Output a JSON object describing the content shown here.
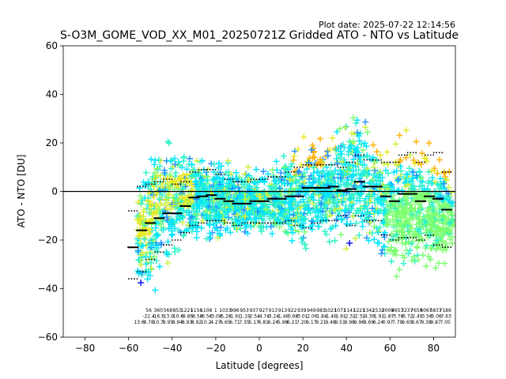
{
  "chart_data": {
    "type": "scatter",
    "title": "S-O3M_GOME_VOD_XX_M01_20250721Z Gridded ATO - NTO vs Latitude",
    "subtitle": "Plot date: 2025-07-22 12:14:56",
    "xlabel": "Latitude [degrees]",
    "ylabel": "ATO - NTO [DU]",
    "xlim": [
      -90,
      90
    ],
    "ylim": [
      -60,
      60
    ],
    "xticks": [
      -80,
      -60,
      -40,
      -20,
      0,
      20,
      40,
      60,
      80
    ],
    "xtick_labels": [
      "−80",
      "−60",
      "−40",
      "−20",
      "0",
      "20",
      "40",
      "60",
      "80"
    ],
    "yticks": [
      -60,
      -40,
      -20,
      0,
      20,
      40,
      60
    ],
    "ytick_labels": [
      "−60",
      "−40",
      "−20",
      "0",
      "20",
      "40",
      "60"
    ],
    "grid": false,
    "reference_line_y": 0,
    "marker": "+",
    "colors": {
      "blue": "#0000ee",
      "dodgerblue": "#1e90ff",
      "cyan": "#00e5ff",
      "aquamarine": "#2ef2c8",
      "springgreen": "#7cff6e",
      "yellowgreen": "#cdf23a",
      "yellow": "#e8e820",
      "orange": "#ffb000"
    },
    "envelope": [
      {
        "lat": -56,
        "upper": 8,
        "lower": -40
      },
      {
        "lat": -52,
        "upper": 14,
        "lower": -52
      },
      {
        "lat": -48,
        "upper": 30,
        "lower": -48
      },
      {
        "lat": -44,
        "upper": 32,
        "lower": -40
      },
      {
        "lat": -40,
        "upper": 28,
        "lower": -36
      },
      {
        "lat": -35,
        "upper": 22,
        "lower": -30
      },
      {
        "lat": -30,
        "upper": 18,
        "lower": -26
      },
      {
        "lat": -25,
        "upper": 18,
        "lower": -24
      },
      {
        "lat": -20,
        "upper": 17,
        "lower": -24
      },
      {
        "lat": -15,
        "upper": 14,
        "lower": -22
      },
      {
        "lat": -10,
        "upper": 14,
        "lower": -22
      },
      {
        "lat": -5,
        "upper": 13,
        "lower": -20
      },
      {
        "lat": 0,
        "upper": 13,
        "lower": -22
      },
      {
        "lat": 5,
        "upper": 15,
        "lower": -22
      },
      {
        "lat": 10,
        "upper": 17,
        "lower": -24
      },
      {
        "lat": 15,
        "upper": 19,
        "lower": -27
      },
      {
        "lat": 20,
        "upper": 26,
        "lower": -30
      },
      {
        "lat": 25,
        "upper": 27,
        "lower": -28
      },
      {
        "lat": 30,
        "upper": 26,
        "lower": -24
      },
      {
        "lat": 35,
        "upper": 32,
        "lower": -26
      },
      {
        "lat": 40,
        "upper": 34,
        "lower": -28
      },
      {
        "lat": 45,
        "upper": 40,
        "lower": -28
      },
      {
        "lat": 50,
        "upper": 30,
        "lower": -28
      },
      {
        "lat": 55,
        "upper": 27,
        "lower": -30
      },
      {
        "lat": 60,
        "upper": 22,
        "lower": -38
      },
      {
        "lat": 65,
        "upper": 28,
        "lower": -42
      },
      {
        "lat": 70,
        "upper": 26,
        "lower": -38
      },
      {
        "lat": 75,
        "upper": 26,
        "lower": -38
      },
      {
        "lat": 80,
        "upper": 24,
        "lower": -40
      },
      {
        "lat": 85,
        "upper": 18,
        "lower": -38
      },
      {
        "lat": 89,
        "upper": 8,
        "lower": -28
      }
    ],
    "mean_points": [
      {
        "lat": -58,
        "value": -23
      },
      {
        "lat": -54,
        "value": -16
      },
      {
        "lat": -50,
        "value": -13
      },
      {
        "lat": -46,
        "value": -11
      },
      {
        "lat": -42,
        "value": -9
      },
      {
        "lat": -38,
        "value": -9
      },
      {
        "lat": -34,
        "value": -6
      },
      {
        "lat": -30,
        "value": -2.5
      },
      {
        "lat": -26,
        "value": -2
      },
      {
        "lat": -22,
        "value": -1.5
      },
      {
        "lat": -18,
        "value": -3
      },
      {
        "lat": -14,
        "value": -4
      },
      {
        "lat": -10,
        "value": -5
      },
      {
        "lat": -6,
        "value": -5
      },
      {
        "lat": -2,
        "value": -4
      },
      {
        "lat": 2,
        "value": -4
      },
      {
        "lat": 6,
        "value": -3
      },
      {
        "lat": 10,
        "value": -3
      },
      {
        "lat": 14,
        "value": -2
      },
      {
        "lat": 18,
        "value": -2
      },
      {
        "lat": 22,
        "value": 1.5
      },
      {
        "lat": 26,
        "value": 1.5
      },
      {
        "lat": 30,
        "value": 1.5
      },
      {
        "lat": 34,
        "value": 2
      },
      {
        "lat": 38,
        "value": 0.5
      },
      {
        "lat": 42,
        "value": 1
      },
      {
        "lat": 46,
        "value": 4
      },
      {
        "lat": 50,
        "value": 2
      },
      {
        "lat": 54,
        "value": 2
      },
      {
        "lat": 58,
        "value": -2
      },
      {
        "lat": 62,
        "value": -4
      },
      {
        "lat": 66,
        "value": -1
      },
      {
        "lat": 70,
        "value": -1
      },
      {
        "lat": 74,
        "value": -4
      },
      {
        "lat": 78,
        "value": -2
      },
      {
        "lat": 82,
        "value": -3
      },
      {
        "lat": 86,
        "value": -7.5
      }
    ],
    "sd_points": [
      {
        "lat": -58,
        "value": -36
      },
      {
        "lat": -54,
        "value": -33
      },
      {
        "lat": -50,
        "value": -28
      },
      {
        "lat": -46,
        "value": -25
      },
      {
        "lat": -42,
        "value": -22
      },
      {
        "lat": -38,
        "value": -20
      },
      {
        "lat": -34,
        "value": -17
      },
      {
        "lat": -30,
        "value": -14
      },
      {
        "lat": -26,
        "value": -13
      },
      {
        "lat": -22,
        "value": -12
      },
      {
        "lat": -18,
        "value": -12
      },
      {
        "lat": -14,
        "value": -13
      },
      {
        "lat": -10,
        "value": -14
      },
      {
        "lat": -6,
        "value": -13
      },
      {
        "lat": -2,
        "value": -13
      },
      {
        "lat": 2,
        "value": -13
      },
      {
        "lat": 6,
        "value": -13
      },
      {
        "lat": 10,
        "value": -13
      },
      {
        "lat": 14,
        "value": -12
      },
      {
        "lat": 18,
        "value": -14
      },
      {
        "lat": 22,
        "value": -15
      },
      {
        "lat": 26,
        "value": -13
      },
      {
        "lat": 30,
        "value": -12
      },
      {
        "lat": 34,
        "value": -12
      },
      {
        "lat": 38,
        "value": -10
      },
      {
        "lat": 42,
        "value": -14
      },
      {
        "lat": 46,
        "value": -10
      },
      {
        "lat": 50,
        "value": -12
      },
      {
        "lat": 54,
        "value": -12
      },
      {
        "lat": 58,
        "value": -18
      },
      {
        "lat": 62,
        "value": -20
      },
      {
        "lat": 66,
        "value": -19
      },
      {
        "lat": 70,
        "value": -19
      },
      {
        "lat": 74,
        "value": -20
      },
      {
        "lat": 78,
        "value": -18
      },
      {
        "lat": 82,
        "value": -22
      },
      {
        "lat": 86,
        "value": -23
      },
      {
        "lat": -58,
        "value": -8
      },
      {
        "lat": -54,
        "value": 2
      },
      {
        "lat": -50,
        "value": 3
      },
      {
        "lat": -46,
        "value": 4
      },
      {
        "lat": -42,
        "value": 5
      },
      {
        "lat": -38,
        "value": 3
      },
      {
        "lat": -34,
        "value": 4
      },
      {
        "lat": -30,
        "value": 8
      },
      {
        "lat": -26,
        "value": 9
      },
      {
        "lat": -22,
        "value": 9
      },
      {
        "lat": -18,
        "value": 7
      },
      {
        "lat": -14,
        "value": 5
      },
      {
        "lat": -10,
        "value": 4
      },
      {
        "lat": -6,
        "value": 4
      },
      {
        "lat": -2,
        "value": 5
      },
      {
        "lat": 2,
        "value": 5
      },
      {
        "lat": 6,
        "value": 6
      },
      {
        "lat": 10,
        "value": 6
      },
      {
        "lat": 14,
        "value": 8
      },
      {
        "lat": 18,
        "value": 10
      },
      {
        "lat": 22,
        "value": 11
      },
      {
        "lat": 26,
        "value": 11
      },
      {
        "lat": 30,
        "value": 11
      },
      {
        "lat": 34,
        "value": 11
      },
      {
        "lat": 38,
        "value": 10
      },
      {
        "lat": 42,
        "value": 12
      },
      {
        "lat": 46,
        "value": 15
      },
      {
        "lat": 50,
        "value": 13
      },
      {
        "lat": 54,
        "value": 13
      },
      {
        "lat": 58,
        "value": 12
      },
      {
        "lat": 62,
        "value": 12
      },
      {
        "lat": 66,
        "value": 15
      },
      {
        "lat": 70,
        "value": 16
      },
      {
        "lat": 74,
        "value": 12
      },
      {
        "lat": 78,
        "value": 15
      },
      {
        "lat": 82,
        "value": 16
      },
      {
        "lat": 86,
        "value": 8
      }
    ],
    "stat_annotations": [
      {
        "lat": -58,
        "lines": [
          "",
          "",
          "13.6"
        ]
      },
      {
        "lat": -55,
        "lines": [
          "56",
          "-22.4",
          "8.78"
        ]
      },
      {
        "lat": -52,
        "lines": [
          "360",
          "-16.5",
          "10.7"
        ]
      },
      {
        "lat": -49,
        "lines": [
          "568",
          "-13.0",
          "8.95"
        ]
      },
      {
        "lat": -46,
        "lines": [
          "853",
          "-10.6",
          "8.94"
        ]
      },
      {
        "lat": -43,
        "lines": [
          "1221",
          "-9.85",
          "8.93"
        ]
      },
      {
        "lat": -40,
        "lines": [
          "1156",
          "-8.58",
          "8.92"
        ]
      },
      {
        "lat": -37,
        "lines": [
          "1108",
          "-6.56",
          "10.2"
        ]
      },
      {
        "lat": -34,
        "lines": [
          "1",
          "-3.08",
          "4.27"
        ]
      },
      {
        "lat": -31,
        "lines": [
          "1033",
          "-5.28",
          "6.65"
        ]
      },
      {
        "lat": -28,
        "lines": [
          "996",
          "-1.91",
          "6.71"
        ]
      },
      {
        "lat": -25,
        "lines": [
          "953",
          "-1.19",
          "7.35"
        ]
      },
      {
        "lat": -22,
        "lines": [
          "937",
          "-2.54",
          "5.17"
        ]
      },
      {
        "lat": -19,
        "lines": [
          "927",
          "-4.74",
          "6.81"
        ]
      },
      {
        "lat": -16,
        "lines": [
          "913",
          "-3.24",
          "6.24"
        ]
      },
      {
        "lat": -13,
        "lines": [
          "913",
          "-1.40",
          "5.98"
        ]
      },
      {
        "lat": -10,
        "lines": [
          "922",
          "-0.68",
          "6.21"
        ]
      },
      {
        "lat": -7,
        "lines": [
          "939",
          "-3.01",
          "7.20"
        ]
      },
      {
        "lat": -4,
        "lines": [
          "949",
          "-2.00",
          "6.17"
        ]
      },
      {
        "lat": -1,
        "lines": [
          "983",
          "-1.84",
          "9.21"
        ]
      },
      {
        "lat": 2,
        "lines": [
          "1023",
          "-1.40",
          "9.48"
        ]
      },
      {
        "lat": 5,
        "lines": [
          "1071",
          "-1.61",
          "9.51"
        ]
      },
      {
        "lat": 8,
        "lines": [
          "1143",
          "-2.32",
          "9.98"
        ]
      },
      {
        "lat": 11,
        "lines": [
          "1221",
          "-2.32",
          "9.96"
        ]
      },
      {
        "lat": 14,
        "lines": [
          "1342",
          "-4.30",
          "9.69"
        ]
      },
      {
        "lat": 17,
        "lines": [
          "1532",
          "-1.91",
          "6.24"
        ]
      },
      {
        "lat": 20,
        "lines": [
          "2009",
          "-1.87",
          "0.97"
        ]
      },
      {
        "lat": 23,
        "lines": [
          "4657",
          "-3.78",
          "7.79"
        ]
      },
      {
        "lat": 26,
        "lines": [
          "3237",
          "-5.72",
          "9.65"
        ]
      },
      {
        "lat": 29,
        "lines": [
          "7658",
          "-2.45",
          "8.67"
        ]
      },
      {
        "lat": 32,
        "lines": [
          "5067",
          "-3.56",
          "9.38"
        ]
      },
      {
        "lat": 35,
        "lines": [
          "5837",
          "-5.06",
          "9.87"
        ]
      },
      {
        "lat": 38,
        "lines": [
          "7189",
          "-7.63",
          "7.05"
        ]
      }
    ]
  }
}
